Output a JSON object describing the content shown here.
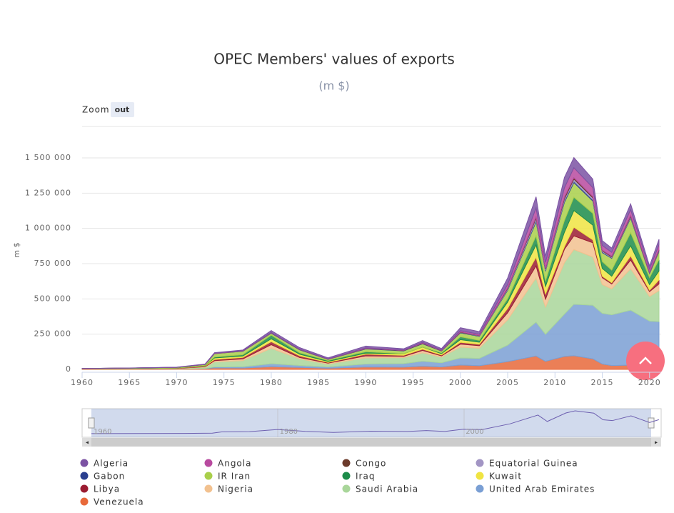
{
  "chart_data": {
    "type": "area",
    "stacked": true,
    "title": "OPEC Members' values of exports",
    "subtitle": "(m $)",
    "y_label": "m $",
    "zoom": {
      "label": "Zoom",
      "button": "out"
    },
    "navigator": {
      "labels": [
        "1960",
        "1980",
        "2000"
      ]
    },
    "x": [
      1960,
      1965,
      1970,
      1973,
      1974,
      1977,
      1980,
      1983,
      1986,
      1990,
      1994,
      1996,
      1998,
      2000,
      2002,
      2005,
      2008,
      2009,
      2011,
      2012,
      2014,
      2015,
      2016,
      2018,
      2020,
      2021
    ],
    "xlim": [
      1960,
      2021
    ],
    "xticks": [
      1960,
      1965,
      1970,
      1975,
      1980,
      1985,
      1990,
      1995,
      2000,
      2005,
      2010,
      2015,
      2020
    ],
    "ylim": [
      0,
      1750000
    ],
    "yticks": [
      0,
      {
        "value": 250000,
        "label": "250 000"
      },
      {
        "value": 500000,
        "label": "500 000"
      },
      {
        "value": 750000,
        "label": "750 000"
      },
      {
        "value": 1000000,
        "label": "1 000 000"
      },
      {
        "value": 1250000,
        "label": "1 250 000"
      },
      {
        "value": 1500000,
        "label": "1 500 000"
      }
    ],
    "grid": true,
    "series": [
      {
        "name": "Algeria",
        "color": "#7b52a3",
        "values": [
          400,
          600,
          1000,
          1900,
          4300,
          5800,
          13900,
          11200,
          7800,
          12900,
          8300,
          13200,
          10100,
          21700,
          18700,
          46000,
          79300,
          45200,
          73500,
          72000,
          60300,
          34800,
          30000,
          41200,
          21900,
          38500
        ]
      },
      {
        "name": "Angola",
        "color": "#b84a9f",
        "values": [
          100,
          200,
          400,
          700,
          1500,
          1800,
          1900,
          1800,
          1300,
          3800,
          3000,
          5100,
          3500,
          8000,
          8300,
          24100,
          63900,
          40800,
          67300,
          71100,
          63900,
          33200,
          28000,
          40800,
          20900,
          33600
        ]
      },
      {
        "name": "Congo",
        "color": "#6b3a2a",
        "values": [
          20,
          40,
          30,
          200,
          500,
          300,
          900,
          1100,
          700,
          1300,
          1000,
          1500,
          1400,
          2500,
          2300,
          4700,
          8600,
          6000,
          11100,
          9500,
          8300,
          4900,
          4700,
          6900,
          4100,
          6100
        ]
      },
      {
        "name": "Equatorial Guinea",
        "color": "#a295c4",
        "values": [
          0,
          0,
          20,
          30,
          40,
          30,
          40,
          30,
          30,
          60,
          60,
          200,
          400,
          1100,
          2200,
          7000,
          15800,
          9100,
          14000,
          15400,
          14100,
          7300,
          5200,
          6600,
          3600,
          5000
        ]
      },
      {
        "name": "Gabon",
        "color": "#2a3f8f",
        "values": [
          50,
          100,
          150,
          300,
          900,
          1300,
          2200,
          1800,
          1100,
          2500,
          2400,
          3200,
          1900,
          3200,
          2600,
          5100,
          9600,
          5300,
          9900,
          9300,
          8700,
          5400,
          4400,
          5700,
          4300,
          5400
        ]
      },
      {
        "name": "IR Iran",
        "color": "#a9cf4a",
        "values": [
          800,
          1200,
          2300,
          6100,
          24000,
          24000,
          13500,
          21000,
          7200,
          19300,
          19400,
          22400,
          13100,
          28300,
          28200,
          60000,
          101000,
          69000,
          130000,
          104000,
          87000,
          63000,
          84000,
          104000,
          28000,
          56000
        ]
      },
      {
        "name": "Iraq",
        "color": "#1c8c4a",
        "values": [
          600,
          900,
          1100,
          2000,
          6500,
          9600,
          26000,
          10000,
          7000,
          10000,
          500,
          600,
          5600,
          20000,
          13000,
          24000,
          63000,
          39000,
          83000,
          94000,
          84000,
          49000,
          43000,
          92000,
          50000,
          80000
        ]
      },
      {
        "name": "Kuwait",
        "color": "#f0e442",
        "values": [
          900,
          1300,
          1700,
          3700,
          10900,
          9800,
          20000,
          11500,
          7400,
          7000,
          11300,
          15000,
          9500,
          19000,
          15000,
          45000,
          87000,
          54000,
          102000,
          119000,
          104000,
          55000,
          46000,
          72000,
          40000,
          63000
        ]
      },
      {
        "name": "Libya",
        "color": "#9b1c31",
        "values": [
          0,
          800,
          2400,
          4000,
          8300,
          11000,
          22000,
          12000,
          5000,
          13000,
          7700,
          9500,
          6300,
          13000,
          10000,
          31000,
          62000,
          37000,
          19000,
          61000,
          21000,
          11000,
          9000,
          29000,
          9000,
          29000
        ]
      },
      {
        "name": "Nigeria",
        "color": "#f2c18f",
        "values": [
          500,
          700,
          1200,
          3500,
          9500,
          12000,
          26000,
          10000,
          6800,
          13500,
          9400,
          16000,
          9800,
          21000,
          18000,
          50000,
          86000,
          57000,
          95000,
          97000,
          101000,
          48000,
          35000,
          62000,
          35000,
          47000
        ]
      },
      {
        "name": "Saudi Arabia",
        "color": "#a9d69a",
        "values": [
          800,
          1600,
          2400,
          9000,
          35000,
          43000,
          109000,
          46000,
          20000,
          44000,
          42000,
          60000,
          39000,
          77000,
          72000,
          180000,
          313000,
          192000,
          365000,
          388000,
          342000,
          204000,
          184000,
          294000,
          174000,
          220000
        ]
      },
      {
        "name": "United Arab Emirates",
        "color": "#7a9fd4",
        "values": [
          0,
          100,
          500,
          1800,
          6400,
          9500,
          21000,
          14000,
          9000,
          21000,
          25000,
          35000,
          30000,
          50000,
          52000,
          117000,
          240000,
          192000,
          300000,
          365000,
          380000,
          360000,
          360000,
          390000,
          335000,
          330000
        ]
      },
      {
        "name": "Venezuela",
        "color": "#e8693a",
        "values": [
          2400,
          2700,
          2600,
          4800,
          11000,
          9600,
          19000,
          14000,
          8500,
          17000,
          16000,
          23000,
          17000,
          31000,
          26000,
          55000,
          95000,
          57000,
          92000,
          97000,
          75000,
          38000,
          27000,
          30000,
          8000,
          9000
        ]
      }
    ]
  }
}
